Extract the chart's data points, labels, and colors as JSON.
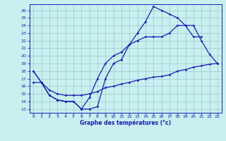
{
  "title": "Graphe des températures (°c)",
  "background_color": "#c8f0f0",
  "line_color": "#1a1ab4",
  "grid_color": "#98c8c8",
  "x_ticks": [
    0,
    1,
    2,
    3,
    4,
    5,
    6,
    7,
    8,
    9,
    10,
    11,
    12,
    13,
    14,
    15,
    16,
    17,
    18,
    19,
    20,
    21,
    22,
    23
  ],
  "y_ticks": [
    13,
    14,
    15,
    16,
    17,
    18,
    19,
    20,
    21,
    22,
    23,
    24,
    25,
    26
  ],
  "ylim": [
    12.5,
    26.8
  ],
  "xlim": [
    -0.5,
    23.5
  ],
  "line1_x": [
    0,
    1,
    2,
    3,
    4,
    5,
    6,
    7,
    8,
    9,
    10,
    11,
    12,
    13,
    14,
    15,
    16,
    17,
    18,
    19,
    20,
    21
  ],
  "line1_y": [
    18,
    16.5,
    14.8,
    14.2,
    14.0,
    14.0,
    13.0,
    13.0,
    13.3,
    17.0,
    19.0,
    19.5,
    21.5,
    23.0,
    24.5,
    26.5,
    26.0,
    25.5,
    25.0,
    24.0,
    22.5,
    22.5
  ],
  "line2_x": [
    0,
    1,
    2,
    3,
    4,
    5,
    6,
    7,
    8,
    9,
    10,
    11,
    12,
    13,
    14,
    15,
    16,
    17,
    18,
    19,
    20,
    21,
    22,
    23
  ],
  "line2_y": [
    18,
    16.5,
    14.8,
    14.2,
    14.0,
    14.0,
    13.0,
    14.5,
    17.0,
    19.0,
    20.0,
    20.5,
    21.5,
    22.0,
    22.5,
    22.5,
    22.5,
    23.0,
    24.0,
    24.0,
    24.0,
    22.0,
    20.2,
    19.0
  ],
  "line3_x": [
    0,
    1,
    2,
    3,
    4,
    5,
    6,
    7,
    8,
    9,
    10,
    11,
    12,
    13,
    14,
    15,
    16,
    17,
    18,
    19,
    20,
    21,
    22,
    23
  ],
  "line3_y": [
    16.5,
    16.5,
    15.5,
    15.0,
    14.8,
    14.8,
    14.8,
    15.0,
    15.3,
    15.8,
    16.0,
    16.3,
    16.5,
    16.8,
    17.0,
    17.2,
    17.3,
    17.5,
    18.0,
    18.2,
    18.5,
    18.7,
    18.9,
    19.0
  ]
}
